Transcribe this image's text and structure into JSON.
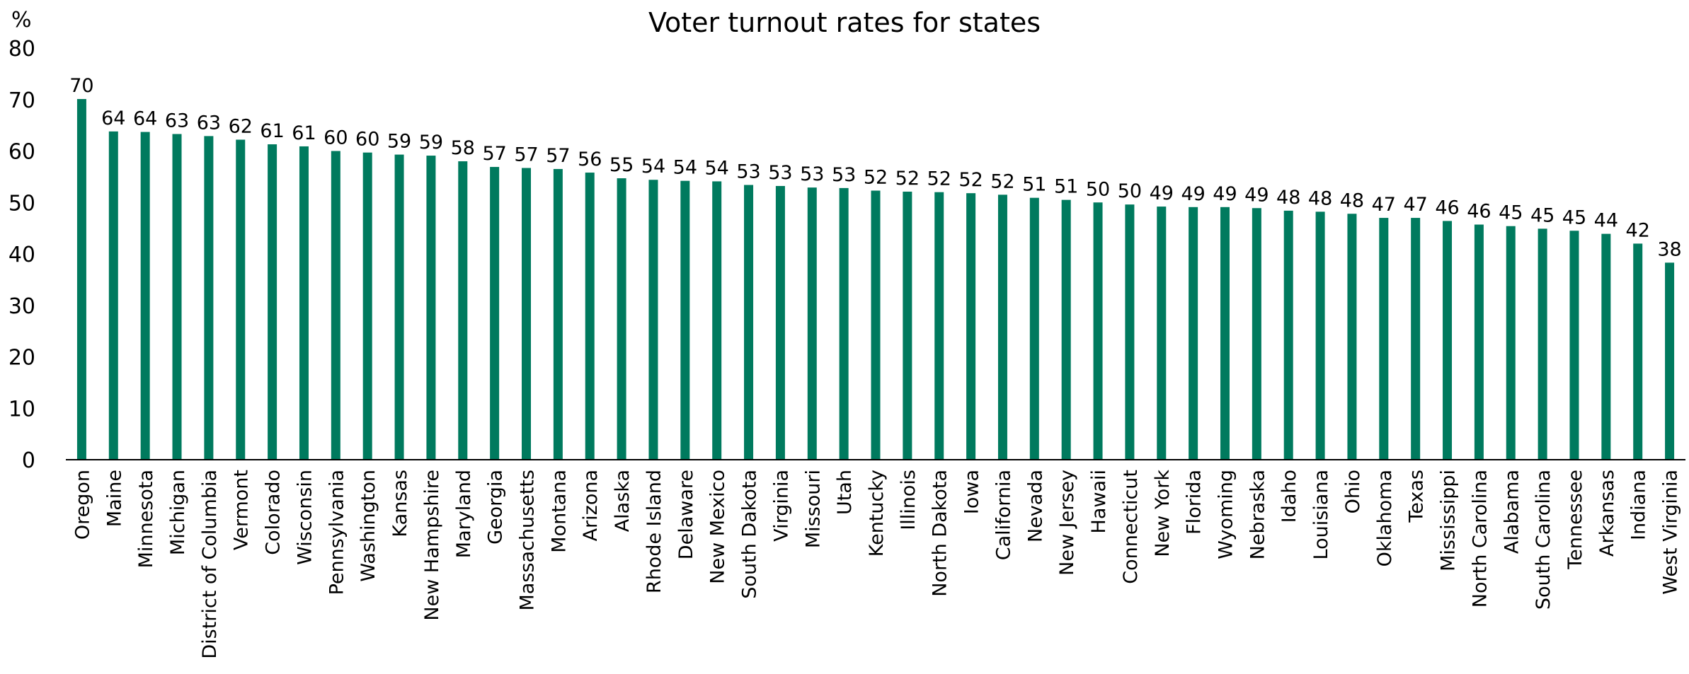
{
  "chart_data": {
    "type": "bar",
    "title": "Voter turnout rates for states",
    "ylabel": "%",
    "xlabel": "",
    "ylim": [
      0,
      80
    ],
    "yticks": [
      0,
      10,
      20,
      30,
      40,
      50,
      60,
      70,
      80
    ],
    "bar_color": "#007A5E",
    "grid": false,
    "legend": "none",
    "categories": [
      "Oregon",
      "Maine",
      "Minnesota",
      "Michigan",
      "District of Columbia",
      "Vermont",
      "Colorado",
      "Wisconsin",
      "Pennsylvania",
      "Washington",
      "Kansas",
      "New Hampshire",
      "Maryland",
      "Georgia",
      "Massachusetts",
      "Montana",
      "Arizona",
      "Alaska",
      "Rhode Island",
      "Delaware",
      "New Mexico",
      "South Dakota",
      "Virginia",
      "Missouri",
      "Utah",
      "Kentucky",
      "Illinois",
      "North Dakota",
      "Iowa",
      "California",
      "Nevada",
      "New Jersey",
      "Hawaii",
      "Connecticut",
      "New York",
      "Florida",
      "Wyoming",
      "Nebraska",
      "Idaho",
      "Louisiana",
      "Ohio",
      "Oklahoma",
      "Texas",
      "Mississippi",
      "North Carolina",
      "Alabama",
      "South Carolina",
      "Tennessee",
      "Arkansas",
      "Indiana",
      "West Virginia"
    ],
    "values": [
      70.1,
      63.8,
      63.7,
      63.3,
      62.9,
      62.2,
      61.3,
      60.9,
      60.0,
      59.7,
      59.3,
      59.1,
      58.0,
      56.9,
      56.7,
      56.5,
      55.8,
      54.7,
      54.4,
      54.2,
      54.1,
      53.4,
      53.2,
      52.9,
      52.8,
      52.3,
      52.1,
      52.0,
      51.8,
      51.5,
      50.9,
      50.5,
      50.0,
      49.6,
      49.2,
      49.1,
      49.1,
      48.9,
      48.4,
      48.2,
      47.8,
      47.0,
      47.0,
      46.4,
      45.7,
      45.4,
      44.9,
      44.5,
      43.9,
      42.0,
      38.3
    ],
    "data_labels": [
      "70",
      "64",
      "64",
      "63",
      "63",
      "62",
      "61",
      "61",
      "60",
      "60",
      "59",
      "59",
      "58",
      "57",
      "57",
      "57",
      "56",
      "55",
      "54",
      "54",
      "54",
      "53",
      "53",
      "53",
      "53",
      "52",
      "52",
      "52",
      "52",
      "52",
      "51",
      "51",
      "50",
      "50",
      "49",
      "49",
      "49",
      "49",
      "48",
      "48",
      "48",
      "47",
      "47",
      "46",
      "46",
      "45",
      "45",
      "45",
      "44",
      "42",
      "38"
    ]
  }
}
